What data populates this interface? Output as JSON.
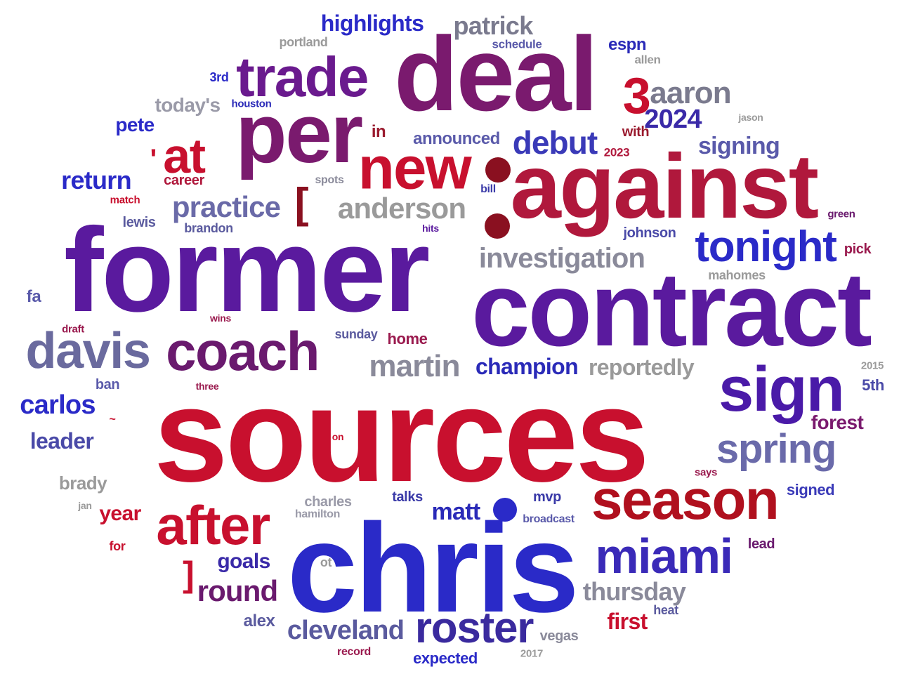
{
  "words": [
    {
      "text": "sources",
      "color": "#c8102e"
    },
    {
      "text": "former",
      "color": "#5a1a9e"
    },
    {
      "text": "contract",
      "color": "#5a1a9e"
    },
    {
      "text": "chris",
      "color": "#2a2ac8"
    },
    {
      "text": "deal",
      "color": "#7a1a6e"
    },
    {
      "text": "per",
      "color": "#7a1a6e"
    },
    {
      "text": "against",
      "color": "#b0183c"
    },
    {
      "text": "trade",
      "color": "#6a1a8e"
    },
    {
      "text": "new",
      "color": "#c8102e"
    },
    {
      "text": "at",
      "color": "#c8102e"
    },
    {
      "text": "sign",
      "color": "#4a1aa8"
    },
    {
      "text": "season",
      "color": "#b0101e"
    },
    {
      "text": "after",
      "color": "#c8102e"
    },
    {
      "text": "coach",
      "color": "#6a1a6e"
    },
    {
      "text": "davis",
      "color": "#6a6a9e"
    },
    {
      "text": "tonight",
      "color": "#2a2ac8"
    },
    {
      "text": "miami",
      "color": "#3a2ab8"
    },
    {
      "text": "spring",
      "color": "#6a6aaa"
    },
    {
      "text": "roster",
      "color": "#3a2a9e"
    },
    {
      "text": "martin",
      "color": "#8a8a9a"
    },
    {
      "text": "practice",
      "color": "#6a6aa8"
    },
    {
      "text": "anderson",
      "color": "#9a9a9a"
    },
    {
      "text": "investigation",
      "color": "#8a8a9a"
    },
    {
      "text": "aaron",
      "color": "#7a7a8e"
    },
    {
      "text": "3",
      "color": "#c8102e"
    },
    {
      "text": "2024",
      "color": "#3a2aa8"
    },
    {
      "text": "debut",
      "color": "#3a3ab8"
    },
    {
      "text": "signing",
      "color": "#5a5aaa"
    },
    {
      "text": "patrick",
      "color": "#7a7a8e"
    },
    {
      "text": "highlights",
      "color": "#2a2ac8"
    },
    {
      "text": "champion",
      "color": "#2a2ab8"
    },
    {
      "text": "reportedly",
      "color": "#9a9a9a"
    },
    {
      "text": "round",
      "color": "#6a1a6e"
    },
    {
      "text": "thursday",
      "color": "#8a8a9a"
    },
    {
      "text": "cleveland",
      "color": "#5a5a9e"
    },
    {
      "text": "carlos",
      "color": "#2a2ac8"
    },
    {
      "text": "return",
      "color": "#2a2ac8"
    },
    {
      "text": "leader",
      "color": "#4a4aa8"
    },
    {
      "text": "matt",
      "color": "#2a2ab8"
    },
    {
      "text": "goals",
      "color": "#3a2aa8"
    },
    {
      "text": "first",
      "color": "#c8102e"
    },
    {
      "text": "year",
      "color": "#c8102e"
    },
    {
      "text": "forest",
      "color": "#7a1a6e"
    },
    {
      "text": "brady",
      "color": "#9a9a9a"
    },
    {
      "text": "announced",
      "color": "#5a5aaa"
    },
    {
      "text": "today's",
      "color": "#9a9aa8"
    },
    {
      "text": "pete",
      "color": "#2a2ac8"
    },
    {
      "text": "espn",
      "color": "#2a2ab8"
    },
    {
      "text": "alex",
      "color": "#5a5a9e"
    },
    {
      "text": "expected",
      "color": "#2a2ac8"
    },
    {
      "text": "home",
      "color": "#9a1a4e"
    },
    {
      "text": "signed",
      "color": "#3a3ab8"
    },
    {
      "text": "mvp",
      "color": "#3a3aa8"
    },
    {
      "text": "talks",
      "color": "#3a3aa8"
    },
    {
      "text": "5th",
      "color": "#4a4aa8"
    },
    {
      "text": "pick",
      "color": "#9a1a4e"
    },
    {
      "text": "lead",
      "color": "#6a1a6e"
    },
    {
      "text": "in",
      "color": "#9a1a2e"
    },
    {
      "text": "with",
      "color": "#9a1a2e"
    },
    {
      "text": "career",
      "color": "#b0183c"
    },
    {
      "text": "lewis",
      "color": "#5a5a9e"
    },
    {
      "text": "brandon",
      "color": "#5a5a9e"
    },
    {
      "text": "johnson",
      "color": "#4a4aa8"
    },
    {
      "text": "mahomes",
      "color": "#9a9a9a"
    },
    {
      "text": "sunday",
      "color": "#5a5a9e"
    },
    {
      "text": "charles",
      "color": "#9a9aa8"
    },
    {
      "text": "vegas",
      "color": "#8a8a9a"
    },
    {
      "text": "fa",
      "color": "#5a5aaa"
    },
    {
      "text": "ban",
      "color": "#5a5aaa"
    },
    {
      "text": "portland",
      "color": "#9a9a9a"
    },
    {
      "text": "schedule",
      "color": "#5a5aaa"
    },
    {
      "text": "allen",
      "color": "#9a9a9a"
    },
    {
      "text": "3rd",
      "color": "#2a2ac8"
    },
    {
      "text": "houston",
      "color": "#2a2ab8"
    },
    {
      "text": "jason",
      "color": "#9a9a9a"
    },
    {
      "text": "2023",
      "color": "#b0183c"
    },
    {
      "text": "spots",
      "color": "#8a8a9a"
    },
    {
      "text": "bill",
      "color": "#3a3aa8"
    },
    {
      "text": "hits",
      "color": "#5a1a9e"
    },
    {
      "text": "green",
      "color": "#6a1a6e"
    },
    {
      "text": "match",
      "color": "#c8102e"
    },
    {
      "text": "draft",
      "color": "#9a1a4e"
    },
    {
      "text": "wins",
      "color": "#9a1a4e"
    },
    {
      "text": "three",
      "color": "#9a1a4e"
    },
    {
      "text": "2015",
      "color": "#9a9a9a"
    },
    {
      "text": "on",
      "color": "#c8102e"
    },
    {
      "text": "says",
      "color": "#9a1a4e"
    },
    {
      "text": "hamilton",
      "color": "#9a9aa8"
    },
    {
      "text": "broadcast",
      "color": "#5a5aaa"
    },
    {
      "text": "jan",
      "color": "#9a9a9a"
    },
    {
      "text": "for",
      "color": "#c8102e"
    },
    {
      "text": "ot",
      "color": "#9a9a9a"
    },
    {
      "text": "heat",
      "color": "#5a5a9e"
    },
    {
      "text": "record",
      "color": "#9a1a4e"
    },
    {
      "text": "2017",
      "color": "#9a9a9a"
    },
    {
      "text": "~",
      "color": "#c8102e"
    },
    {
      "text": "[",
      "color": "#8a1020"
    },
    {
      "text": "]",
      "color": "#c8102e"
    },
    {
      "text": "'",
      "color": "#c8102e"
    }
  ],
  "colors": {
    "red": "#c8102e",
    "blue": "#2a2ac8",
    "purple": "#5a1a9e",
    "grey": "#9a9a9a"
  }
}
